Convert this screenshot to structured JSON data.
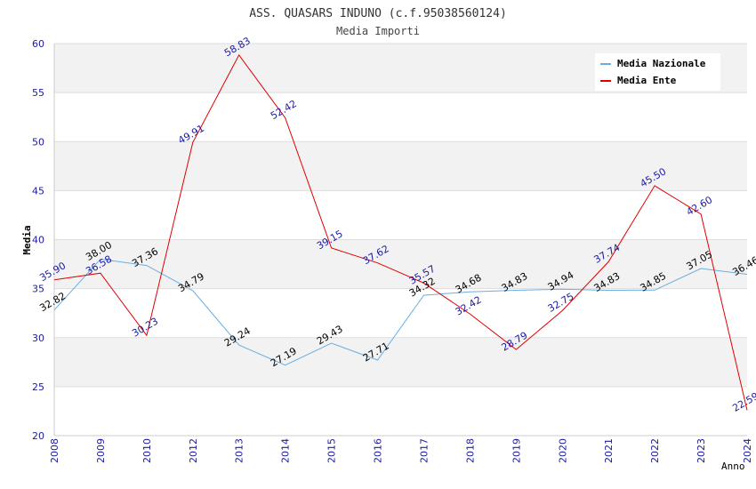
{
  "chart_data": {
    "type": "line",
    "title": "ASS. QUASARS INDUNO (c.f.95038560124)",
    "subtitle": "Media Importi",
    "xlabel": "Anno",
    "ylabel": "Media",
    "ylim": [
      20,
      60
    ],
    "yticks": [
      "20",
      "25",
      "30",
      "35",
      "40",
      "45",
      "50",
      "55",
      "60"
    ],
    "categories": [
      "2008",
      "2009",
      "2010",
      "2012",
      "2013",
      "2014",
      "2015",
      "2016",
      "2017",
      "2018",
      "2019",
      "2020",
      "2021",
      "2022",
      "2023",
      "2024"
    ],
    "grid": true,
    "legend_position": "top-right",
    "series": [
      {
        "name": "Media Nazionale",
        "color": "#6aaee0",
        "values": [
          32.82,
          38.0,
          37.36,
          34.79,
          29.24,
          27.19,
          29.43,
          27.71,
          34.32,
          34.68,
          34.83,
          34.94,
          34.83,
          34.85,
          37.05,
          36.46
        ],
        "labels": [
          "32.82",
          "38.00",
          "37.36",
          "34.79",
          "29.24",
          "27.19",
          "29.43",
          "27.71",
          "34.32",
          "34.68",
          "34.83",
          "34.94",
          "34.83",
          "34.85",
          "37.05",
          "36.46"
        ]
      },
      {
        "name": "Media Ente",
        "color": "#e00000",
        "values": [
          35.9,
          36.58,
          30.23,
          49.91,
          58.83,
          52.42,
          39.15,
          37.62,
          35.57,
          32.42,
          28.79,
          32.75,
          37.74,
          45.5,
          42.6,
          22.59
        ],
        "labels": [
          "35.90",
          "36.58",
          "30.23",
          "49.91",
          "58.83",
          "52.42",
          "39.15",
          "37.62",
          "35.57",
          "32.42",
          "28.79",
          "32.75",
          "37.74",
          "45.50",
          "42.60",
          "22.59"
        ]
      }
    ]
  }
}
